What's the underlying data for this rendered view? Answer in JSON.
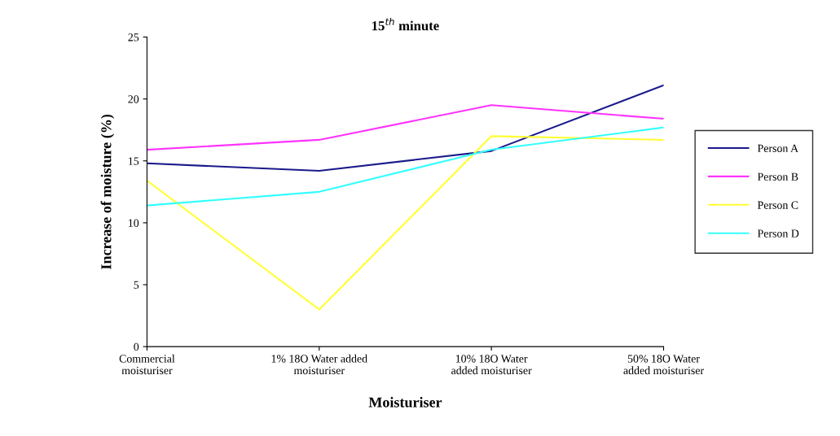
{
  "chart_data": {
    "type": "line",
    "title": "15$^{th}$ minute",
    "xlabel": "Moisturiser",
    "ylabel": "Increase of moisture (%)",
    "categories": [
      "Commercial\nmoisturiser",
      "1% 18O Water added\nmoisturiser",
      "10% 18O Water\nadded moisturiser",
      "50% 18O Water\nadded moisturiser"
    ],
    "series": [
      {
        "name": "Person A",
        "color": "#1a1a8c",
        "values": [
          14.8,
          14.2,
          15.8,
          21.1
        ]
      },
      {
        "name": "Person B",
        "color": "#ff33ff",
        "values": [
          15.9,
          16.7,
          19.5,
          18.4
        ]
      },
      {
        "name": "Person C",
        "color": "#ffff33",
        "values": [
          13.4,
          3.0,
          17.0,
          16.7
        ]
      },
      {
        "name": "Person D",
        "color": "#33ffff",
        "values": [
          11.4,
          12.5,
          15.9,
          17.7
        ]
      }
    ],
    "ylim": [
      0,
      25
    ],
    "yticks": [
      0,
      5,
      10,
      15,
      20,
      25
    ],
    "grid": false,
    "legend": "right",
    "marker": "none",
    "line_style": "solid"
  }
}
